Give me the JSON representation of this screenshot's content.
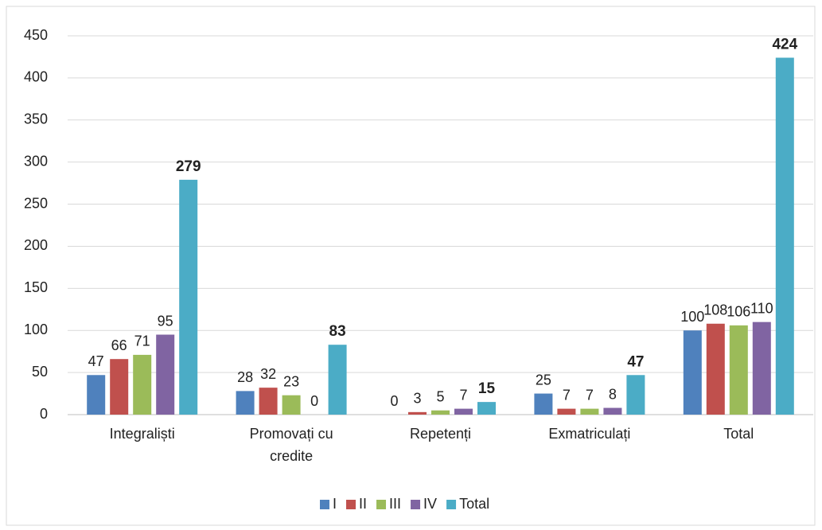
{
  "chart_data": {
    "type": "bar",
    "categories": [
      "Integraliști",
      "Promovați cu credite",
      "Repetenți",
      "Exmatriculați",
      "Total"
    ],
    "series": [
      {
        "name": "I",
        "color": "#4f81bd",
        "values": [
          47,
          28,
          0,
          25,
          100
        ]
      },
      {
        "name": "II",
        "color": "#c0504d",
        "values": [
          66,
          32,
          3,
          7,
          108
        ]
      },
      {
        "name": "III",
        "color": "#9bbb59",
        "values": [
          71,
          23,
          5,
          7,
          106
        ]
      },
      {
        "name": "IV",
        "color": "#8064a2",
        "values": [
          95,
          0,
          7,
          8,
          110
        ]
      },
      {
        "name": "Total",
        "color": "#4bacc6",
        "values": [
          279,
          83,
          15,
          47,
          424
        ]
      }
    ],
    "ylim": [
      0,
      450
    ],
    "yticks": [
      0,
      50,
      100,
      150,
      200,
      250,
      300,
      350,
      400,
      450
    ],
    "grid": true,
    "legend": "bottom"
  }
}
